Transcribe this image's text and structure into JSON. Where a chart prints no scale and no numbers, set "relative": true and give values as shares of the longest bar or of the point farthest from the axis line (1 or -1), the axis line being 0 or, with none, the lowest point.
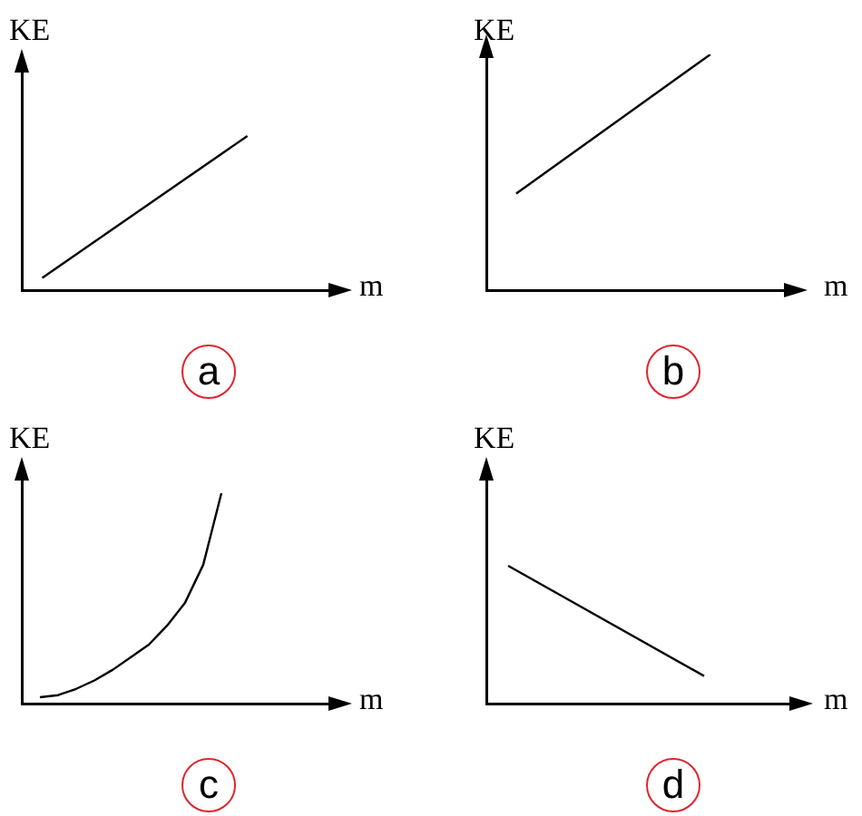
{
  "chart_data": [
    {
      "type": "line",
      "relative": true,
      "xlabel": "m",
      "ylabel": "KE",
      "annotations": [
        "a"
      ],
      "tick_labels": false,
      "marker": "none",
      "color": "#000000",
      "categories": [
        null,
        null,
        null,
        null,
        null,
        null,
        null,
        null,
        null,
        null,
        null,
        null,
        null,
        null,
        null,
        null
      ],
      "values": [
        null,
        0.08,
        null,
        null,
        null,
        null,
        null,
        null,
        null,
        null,
        null,
        1,
        null,
        null,
        null,
        null
      ]
    },
    {
      "type": "line",
      "relative": true,
      "xlabel": "m",
      "ylabel": "KE",
      "annotations": [
        "b"
      ],
      "tick_labels": false,
      "marker": "none",
      "color": "#000000",
      "categories": [
        null,
        null,
        null,
        null,
        null,
        null,
        null,
        null,
        null,
        null,
        null,
        null,
        null,
        null,
        null,
        null,
        null,
        null,
        null,
        null,
        null
      ],
      "values": [
        null,
        null,
        0.41,
        null,
        null,
        null,
        null,
        null,
        null,
        null,
        null,
        null,
        null,
        null,
        null,
        1,
        null,
        null,
        null,
        null,
        null
      ]
    },
    {
      "type": "line",
      "relative": true,
      "xlabel": "m",
      "ylabel": "KE",
      "annotations": [
        "c"
      ],
      "tick_labels": false,
      "marker": "none",
      "color": "#000000",
      "categories": [
        null,
        null,
        null,
        null,
        null,
        null,
        null,
        null,
        null,
        null,
        null,
        null,
        null,
        null,
        null,
        null,
        null,
        null
      ],
      "values": [
        null,
        0.03,
        0.04,
        0.07,
        0.11,
        0.16,
        0.22,
        0.28,
        0.37,
        0.48,
        0.66,
        1,
        null,
        null,
        null,
        null,
        null,
        null
      ]
    },
    {
      "type": "line",
      "relative": true,
      "xlabel": "m",
      "ylabel": "KE",
      "annotations": [
        "d"
      ],
      "tick_labels": false,
      "marker": "none",
      "color": "#000000",
      "categories": [
        null,
        null,
        null,
        null,
        null,
        null,
        null,
        null,
        null,
        null,
        null,
        null,
        null,
        null,
        null
      ],
      "values": [
        null,
        1,
        null,
        null,
        null,
        null,
        null,
        null,
        null,
        null,
        0.2,
        null,
        null,
        null,
        null
      ]
    }
  ]
}
